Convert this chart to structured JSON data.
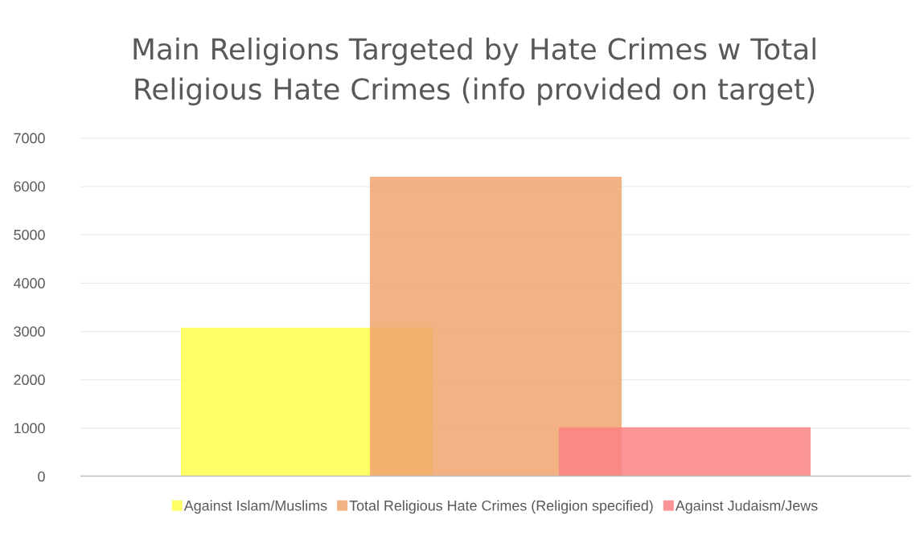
{
  "chart_data": {
    "type": "bar",
    "title": "Main Religions Targeted by Hate Crimes w Total Religious Hate Crimes (info provided on target)",
    "categories": [
      null
    ],
    "series": [
      {
        "name": "Against Islam/Muslims",
        "color": "#ffff4b",
        "values": [
          3080
        ]
      },
      {
        "name": "Total Religious Hate Crimes (Religion specified)",
        "color": "#f0a46e",
        "values": [
          6200
        ]
      },
      {
        "name": "Against Judaism/Jews",
        "color": "#fa8282",
        "values": [
          1020
        ]
      }
    ],
    "ylim": [
      0,
      7000
    ],
    "yticks": [
      0,
      1000,
      2000,
      3000,
      4000,
      5000,
      6000,
      7000
    ],
    "grid": "y",
    "legend": "bottom"
  }
}
